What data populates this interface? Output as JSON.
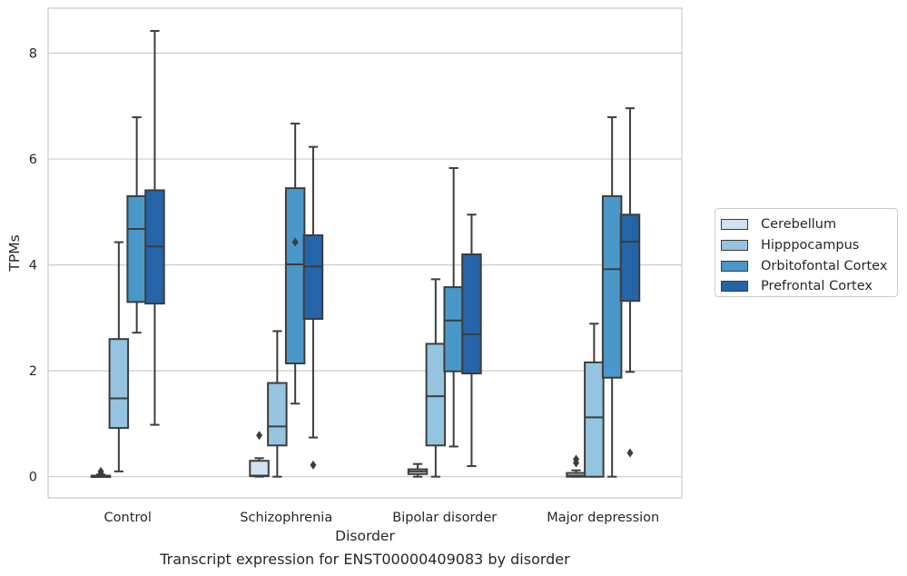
{
  "chart_data": {
    "type": "box",
    "title": "",
    "caption": "Transcript expression for ENST00000409083 by disorder",
    "xlabel": "Disorder",
    "ylabel": "TPMs",
    "ylim": [
      -0.4,
      8.85
    ],
    "yticks": [
      0,
      2,
      4,
      6,
      8
    ],
    "grid": "horizontal",
    "legend_position": "right",
    "categories": [
      "Control",
      "Schizophrenia",
      "Bipolar disorder",
      "Major depression"
    ],
    "series": [
      {
        "name": "Cerebellum",
        "color": "#d0e1f2",
        "boxes": [
          {
            "whisker_low": 0.0,
            "q1": 0.0,
            "median": 0.0,
            "q3": 0.02,
            "whisker_high": 0.04,
            "outliers": [
              0.06,
              0.1
            ]
          },
          {
            "whisker_low": 0.0,
            "q1": 0.01,
            "median": 0.02,
            "q3": 0.3,
            "whisker_high": 0.35,
            "outliers": [
              0.78
            ]
          },
          {
            "whisker_low": 0.0,
            "q1": 0.05,
            "median": 0.1,
            "q3": 0.14,
            "whisker_high": 0.24,
            "outliers": []
          },
          {
            "whisker_low": 0.0,
            "q1": 0.0,
            "median": 0.02,
            "q3": 0.07,
            "whisker_high": 0.12,
            "outliers": [
              0.26,
              0.33
            ]
          }
        ]
      },
      {
        "name": "Hipppocampus",
        "color": "#94c4df",
        "boxes": [
          {
            "whisker_low": 0.1,
            "q1": 0.92,
            "median": 1.48,
            "q3": 2.6,
            "whisker_high": 4.43,
            "outliers": []
          },
          {
            "whisker_low": 0.0,
            "q1": 0.59,
            "median": 0.95,
            "q3": 1.77,
            "whisker_high": 2.75,
            "outliers": []
          },
          {
            "whisker_low": 0.0,
            "q1": 0.59,
            "median": 1.52,
            "q3": 2.51,
            "whisker_high": 3.73,
            "outliers": []
          },
          {
            "whisker_low": 0.0,
            "q1": 0.0,
            "median": 1.12,
            "q3": 2.16,
            "whisker_high": 2.89,
            "outliers": []
          }
        ]
      },
      {
        "name": "Orbitofontal Cortex",
        "color": "#4a98c9",
        "boxes": [
          {
            "whisker_low": 2.72,
            "q1": 3.3,
            "median": 4.68,
            "q3": 5.3,
            "whisker_high": 6.79,
            "outliers": []
          },
          {
            "whisker_low": 1.38,
            "q1": 2.14,
            "median": 4.01,
            "q3": 5.45,
            "whisker_high": 6.67,
            "outliers": [
              4.43
            ]
          },
          {
            "whisker_low": 0.57,
            "q1": 1.99,
            "median": 2.95,
            "q3": 3.58,
            "whisker_high": 5.83,
            "outliers": []
          },
          {
            "whisker_low": 0.0,
            "q1": 1.87,
            "median": 3.92,
            "q3": 5.3,
            "whisker_high": 6.79,
            "outliers": []
          }
        ]
      },
      {
        "name": "Prefrontal Cortex",
        "color": "#2464a8",
        "boxes": [
          {
            "whisker_low": 0.98,
            "q1": 3.27,
            "median": 4.35,
            "q3": 5.41,
            "whisker_high": 8.42,
            "outliers": []
          },
          {
            "whisker_low": 0.74,
            "q1": 2.98,
            "median": 3.97,
            "q3": 4.56,
            "whisker_high": 6.23,
            "outliers": [
              0.22
            ]
          },
          {
            "whisker_low": 0.2,
            "q1": 1.95,
            "median": 2.69,
            "q3": 4.2,
            "whisker_high": 4.95,
            "outliers": []
          },
          {
            "whisker_low": 1.98,
            "q1": 3.32,
            "median": 4.44,
            "q3": 4.95,
            "whisker_high": 6.96,
            "outliers": [
              0.45
            ]
          }
        ]
      }
    ]
  }
}
